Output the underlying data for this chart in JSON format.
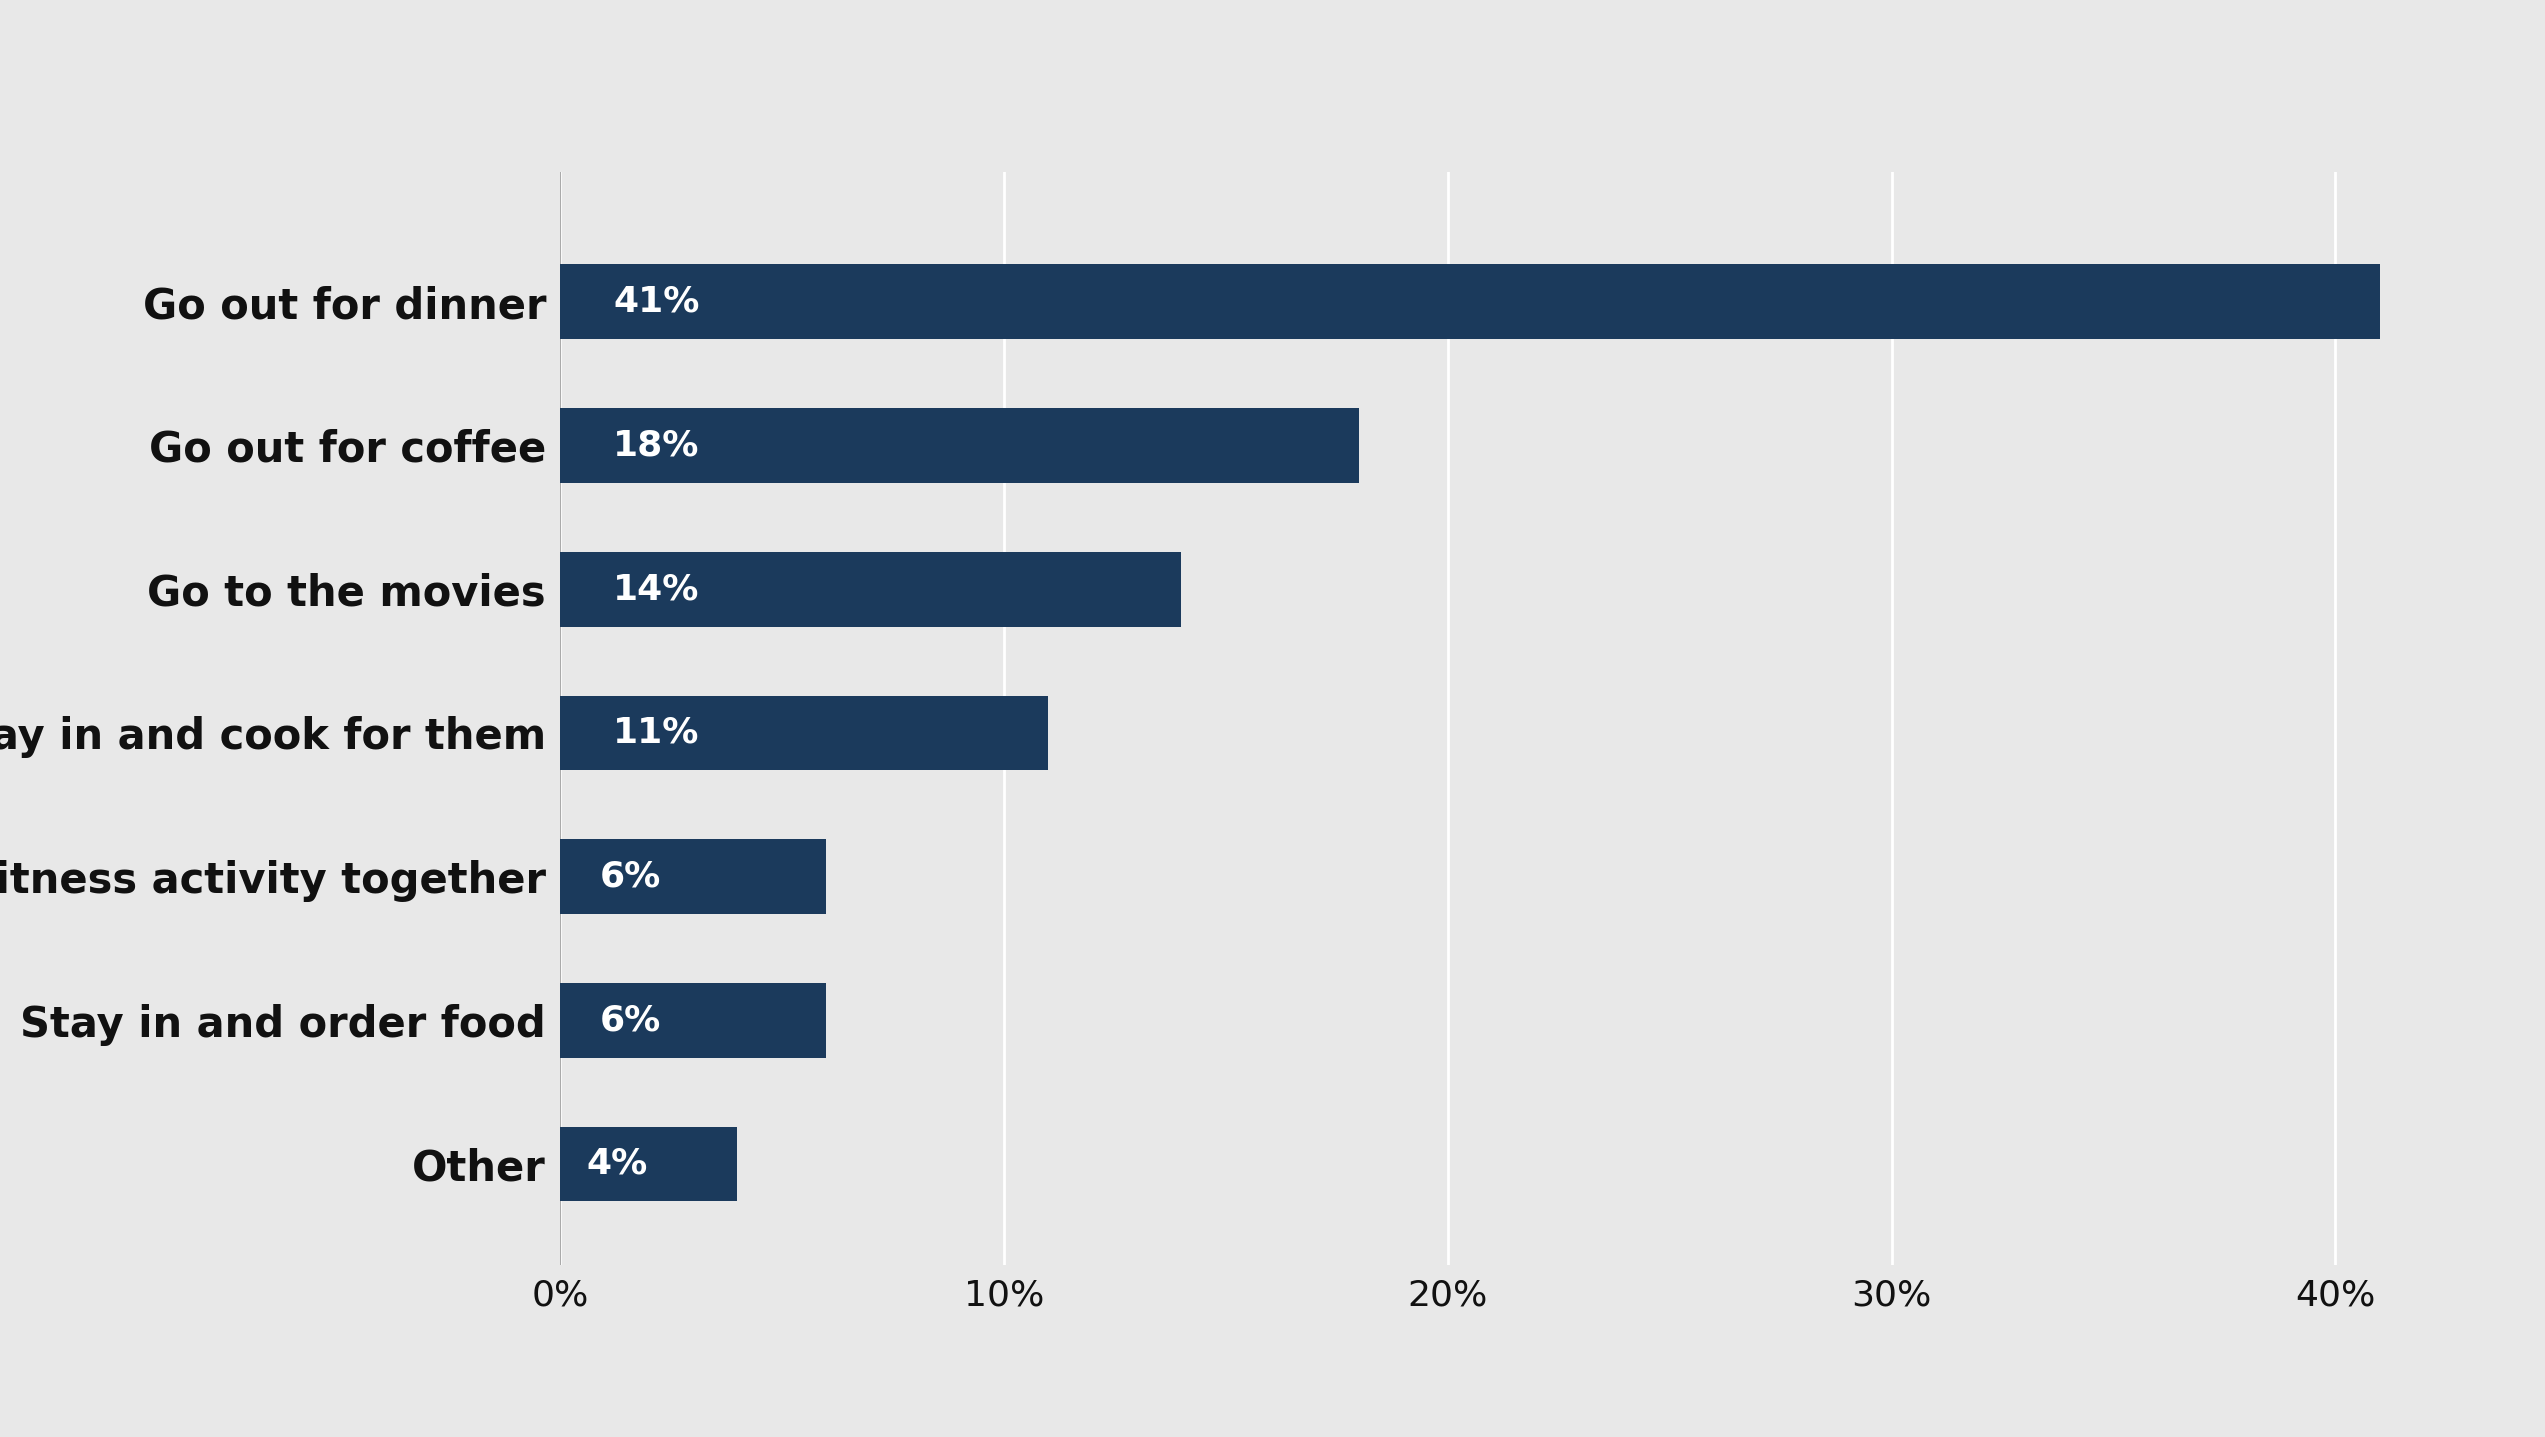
{
  "categories": [
    "Other",
    "Stay in and order food",
    "Try a fitness activity together",
    "Stay in and cook for them",
    "Go to the movies",
    "Go out for coffee",
    "Go out for dinner"
  ],
  "values": [
    4,
    6,
    6,
    11,
    14,
    18,
    41
  ],
  "bar_color": "#1b3a5c",
  "background_color": "#e8e8e8",
  "label_color": "#ffffff",
  "tick_label_color": "#111111",
  "xlim": [
    0,
    43
  ],
  "xticks": [
    0,
    10,
    20,
    30,
    40
  ],
  "xtick_labels": [
    "0%",
    "10%",
    "20%",
    "30%",
    "40%"
  ],
  "bar_height": 0.52,
  "label_fontsize": 26,
  "tick_fontsize": 26,
  "category_fontsize": 30,
  "value_label_fontsize": 26
}
